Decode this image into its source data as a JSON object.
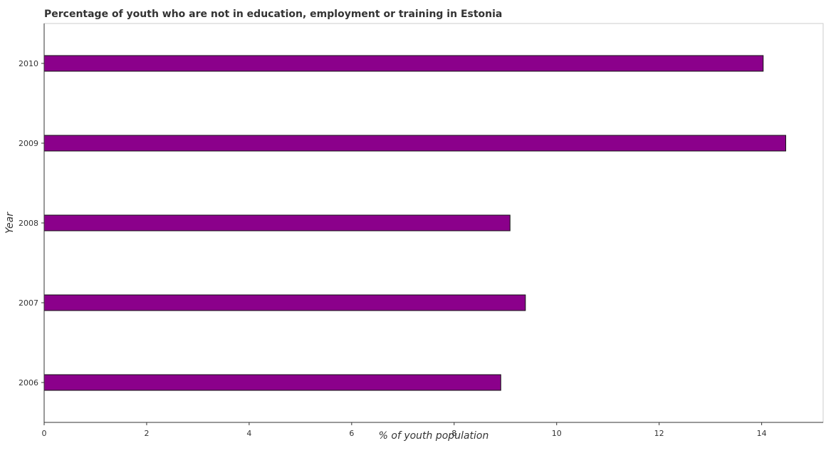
{
  "chart_data": {
    "type": "bar",
    "orientation": "horizontal",
    "title": "Percentage of youth who are not in education, employment or training in Estonia",
    "xlabel": "% of youth population",
    "ylabel": "Year",
    "categories": [
      "2006",
      "2007",
      "2008",
      "2009",
      "2010"
    ],
    "values": [
      8.91,
      9.39,
      9.09,
      14.47,
      14.03
    ],
    "xlim": [
      0,
      15.2
    ],
    "xticks": [
      0,
      2,
      4,
      6,
      8,
      10,
      12,
      14
    ],
    "xtick_labels": [
      "0",
      "2",
      "4",
      "6",
      "8",
      "10",
      "12",
      "14"
    ],
    "grid": false,
    "bar_color": "#8b008b",
    "bar_edge_color": "#111111"
  }
}
